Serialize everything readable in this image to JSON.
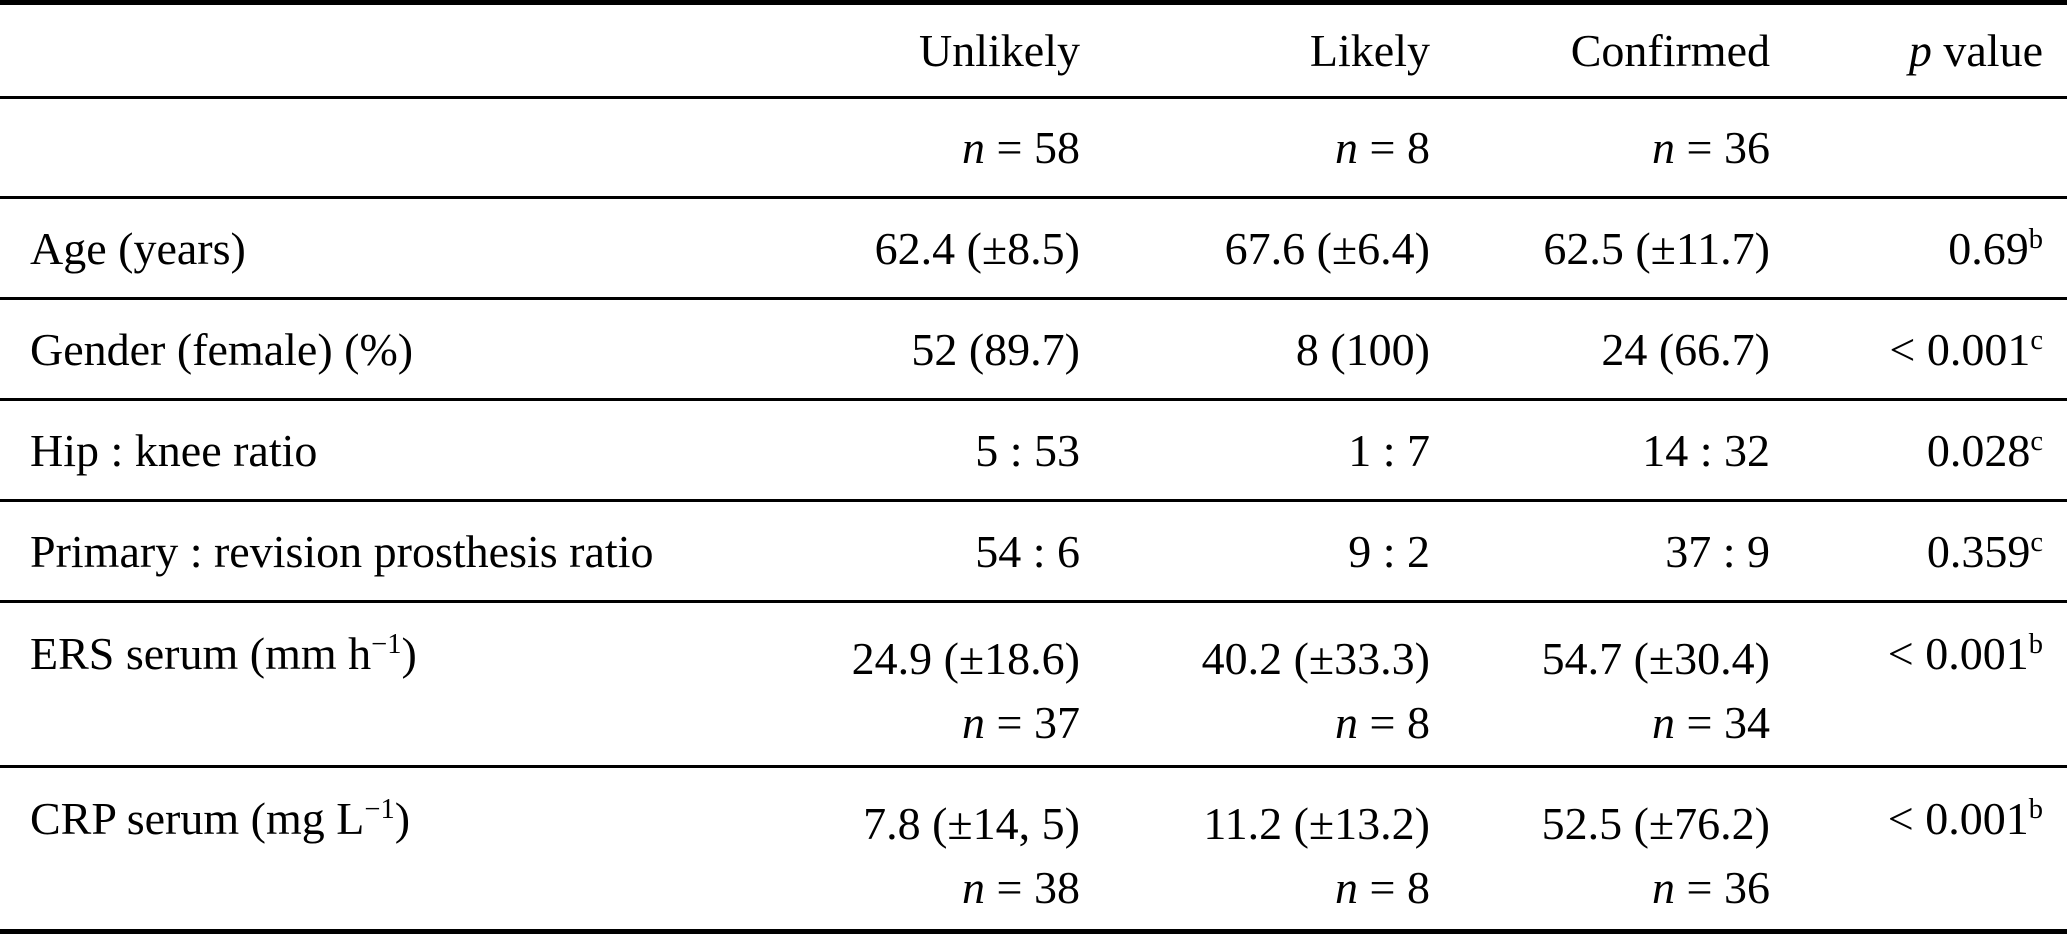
{
  "table": {
    "columns": [
      "",
      "Unlikely",
      "Likely",
      "Confirmed",
      "*p* value"
    ],
    "column_ids": [
      "row-label",
      "unlikely",
      "likely",
      "confirmed",
      "p-value"
    ],
    "subheader": [
      "",
      "*n* = 58",
      "*n* = 8",
      "*n* = 36",
      ""
    ],
    "rows": [
      {
        "label": "Age (years)",
        "cells": [
          "62.4 (±8.5)",
          "67.6 (±6.4)",
          "62.5 (±11.7)",
          "0.69^b"
        ]
      },
      {
        "label": "Gender (female) (%)",
        "cells": [
          "52 (89.7)",
          "8 (100)",
          "24 (66.7)",
          "< 0.001^c"
        ]
      },
      {
        "label": "Hip : knee ratio",
        "cells": [
          "5 : 53",
          "1 : 7",
          "14 : 32",
          "0.028^c"
        ]
      },
      {
        "label": "Primary : revision prosthesis ratio",
        "cells": [
          "54 : 6",
          "9 : 2",
          "37 : 9",
          "0.359^c"
        ]
      },
      {
        "label": "ERS serum (mm h^−1)",
        "cells": [
          [
            "24.9 (±18.6)",
            "*n* = 37"
          ],
          [
            "40.2 (±33.3)",
            "*n* = 8"
          ],
          [
            "54.7 (±30.4)",
            "*n* = 34"
          ],
          "< 0.001^b"
        ]
      },
      {
        "label": "CRP serum (mg L^−1)",
        "cells": [
          [
            "7.8 (±14, 5)",
            "*n* = 38"
          ],
          [
            "11.2 (±13.2)",
            "*n* = 8"
          ],
          [
            "52.5 (±76.2)",
            "*n* = 36"
          ],
          "< 0.001^b"
        ]
      }
    ],
    "colors": {
      "text": "#000000",
      "background": "#ffffff",
      "rule": "#000000"
    }
  }
}
